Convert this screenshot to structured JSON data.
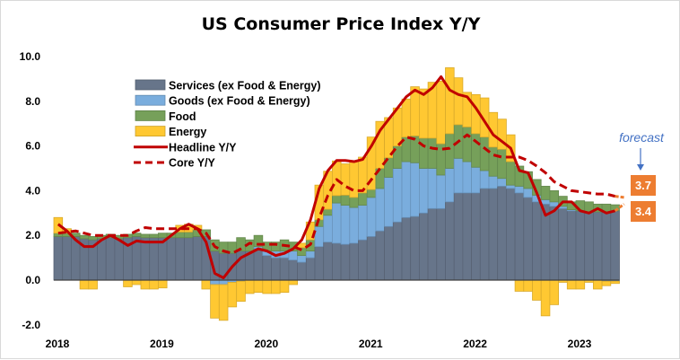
{
  "chart_data": {
    "type": "bar",
    "subtype": "stacked bar with lines",
    "title": "US Consumer Price Index Y/Y",
    "xlabel": "",
    "ylabel": "",
    "ylim": [
      -2.0,
      10.0
    ],
    "yticks": [
      "-2.0",
      "0.0",
      "2.0",
      "4.0",
      "6.0",
      "8.0",
      "10.0"
    ],
    "xticks": [
      "2018",
      "2019",
      "2020",
      "2021",
      "2022",
      "2023"
    ],
    "grid": false,
    "legend_position": "top-left",
    "start_month": "2018-01",
    "series": [
      {
        "name": "Services (ex Food & Energy)",
        "kind": "bar",
        "color": "#67758A",
        "values": [
          1.95,
          1.95,
          1.95,
          1.85,
          1.8,
          1.85,
          1.9,
          1.85,
          1.9,
          1.95,
          1.9,
          1.9,
          1.9,
          1.9,
          1.9,
          1.9,
          1.95,
          1.95,
          1.3,
          1.2,
          1.2,
          1.3,
          1.3,
          1.4,
          1.1,
          1.0,
          1.0,
          0.9,
          0.8,
          1.0,
          1.5,
          1.7,
          1.65,
          1.6,
          1.65,
          1.8,
          1.95,
          2.2,
          2.4,
          2.6,
          2.8,
          2.85,
          3.0,
          3.2,
          3.2,
          3.5,
          3.9,
          3.9,
          3.9,
          4.1,
          4.1,
          4.2,
          4.1,
          3.9,
          3.7,
          3.5,
          3.4,
          3.3,
          3.2,
          3.1,
          3.1,
          3.05,
          3.05,
          3.05,
          3.1
        ]
      },
      {
        "name": "Goods (ex Food & Energy)",
        "kind": "bar",
        "color": "#7AADDD",
        "values": [
          0,
          0,
          0,
          0,
          0,
          0,
          0,
          0,
          0,
          0,
          0,
          0,
          0,
          0,
          0,
          0,
          0,
          0,
          -0.2,
          -0.2,
          -0.1,
          -0.05,
          0,
          0.1,
          0.2,
          0.3,
          0.3,
          0.4,
          0.3,
          0.3,
          0.9,
          1.2,
          1.8,
          1.75,
          1.6,
          1.55,
          1.75,
          1.9,
          2.2,
          2.4,
          2.5,
          2.4,
          2.0,
          1.8,
          1.5,
          1.5,
          1.55,
          1.4,
          1.15,
          0.8,
          0.55,
          0.35,
          0.15,
          0.3,
          0.4,
          0.3,
          0.2,
          0.2,
          0.1,
          0.05,
          0,
          0,
          0,
          -0.05,
          -0.05
        ]
      },
      {
        "name": "Food",
        "kind": "bar",
        "color": "#76A05A",
        "values": [
          0.15,
          0.15,
          0.15,
          0.15,
          0.15,
          0.15,
          0.15,
          0.15,
          0.15,
          0.15,
          0.15,
          0.15,
          0.2,
          0.2,
          0.25,
          0.25,
          0.3,
          0.3,
          0.5,
          0.5,
          0.5,
          0.6,
          0.5,
          0.5,
          0.4,
          0.4,
          0.5,
          0.4,
          0.35,
          0.5,
          0.3,
          0.27,
          0.33,
          0.45,
          0.45,
          0.55,
          0.35,
          0.9,
          0.87,
          1.0,
          1.1,
          1.2,
          1.35,
          1.35,
          1.4,
          1.55,
          1.5,
          1.55,
          1.5,
          1.5,
          1.3,
          1.3,
          1.05,
          0.9,
          0.75,
          0.7,
          0.6,
          0.5,
          0.45,
          0.35,
          0.45,
          0.45,
          0.35,
          0.35,
          0.27
        ]
      },
      {
        "name": "Energy",
        "kind": "bar",
        "color": "#FFC832",
        "values": [
          0.7,
          0.2,
          0,
          -0.4,
          -0.4,
          0,
          0,
          0,
          -0.3,
          -0.2,
          -0.4,
          -0.4,
          -0.35,
          0,
          0.3,
          0.35,
          0.2,
          -0.4,
          -1.5,
          -1.6,
          -1.1,
          -0.9,
          -0.6,
          -0.55,
          -0.6,
          -0.6,
          -0.55,
          -0.2,
          0.2,
          0.8,
          1.55,
          1.7,
          1.55,
          1.4,
          1.6,
          1.6,
          2.35,
          2.1,
          1.8,
          1.7,
          1.7,
          2.2,
          2.2,
          2.5,
          2.8,
          2.95,
          2.1,
          1.55,
          1.75,
          1.75,
          1.55,
          1.35,
          1.2,
          -0.5,
          -0.5,
          -0.9,
          -1.6,
          -1.1,
          -0.1,
          -0.4,
          -0.4,
          -0.1,
          -0.4,
          -0.2,
          -0.1
        ]
      },
      {
        "name": "Headline Y/Y",
        "kind": "line",
        "style": "solid",
        "color": "#C00000",
        "values": [
          2.5,
          2.2,
          1.8,
          1.5,
          1.5,
          1.8,
          2.0,
          1.8,
          1.55,
          1.75,
          1.7,
          1.7,
          1.7,
          2.0,
          2.3,
          2.5,
          2.3,
          1.7,
          0.3,
          0.1,
          0.6,
          1.0,
          1.2,
          1.4,
          1.3,
          1.1,
          1.2,
          1.4,
          1.8,
          2.7,
          4.1,
          4.9,
          5.35,
          5.35,
          5.3,
          5.4,
          6.0,
          6.7,
          7.2,
          7.7,
          8.2,
          8.5,
          8.3,
          8.6,
          9.1,
          8.5,
          8.3,
          8.2,
          7.7,
          7.1,
          6.5,
          6.2,
          5.9,
          4.9,
          4.8,
          3.9,
          2.9,
          3.1,
          3.5,
          3.5,
          3.1,
          3.0,
          3.2,
          3.0,
          3.1
        ],
        "forecast": 3.4
      },
      {
        "name": "Core Y/Y",
        "kind": "line",
        "style": "dashed",
        "color": "#C00000",
        "values": [
          2.1,
          2.15,
          2.2,
          2.1,
          2.0,
          2.0,
          2.0,
          2.0,
          2.0,
          2.2,
          2.35,
          2.3,
          2.3,
          2.3,
          2.3,
          2.3,
          2.3,
          2.1,
          1.5,
          1.3,
          1.2,
          1.4,
          1.65,
          1.6,
          1.6,
          1.6,
          1.55,
          1.5,
          1.35,
          1.6,
          2.8,
          3.8,
          4.5,
          4.2,
          4.0,
          4.0,
          4.5,
          5.0,
          5.5,
          6.0,
          6.4,
          6.3,
          6.0,
          5.9,
          5.85,
          5.9,
          6.2,
          6.5,
          6.2,
          5.9,
          5.6,
          5.5,
          5.5,
          5.5,
          5.35,
          5.1,
          4.8,
          4.4,
          4.2,
          4.0,
          3.95,
          3.9,
          3.85,
          3.85,
          3.75
        ],
        "forecast": 3.7
      }
    ],
    "annotations": {
      "forecast_text": "forecast",
      "forecast_color": "#4472C4",
      "core_forecast_label": "3.7",
      "headline_forecast_label": "3.4",
      "label_box_color": "#ED7D31"
    }
  }
}
